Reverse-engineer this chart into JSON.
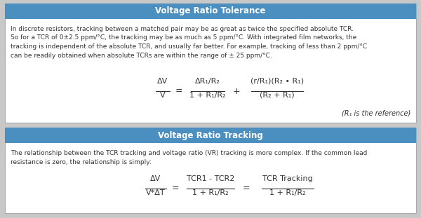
{
  "header1": "Voltage Ratio Tolerance",
  "header2": "Voltage Ratio Tracking",
  "header_bg": "#4a8fc0",
  "header_text_color": "#ffffff",
  "box_bg": "#ffffff",
  "box_border": "#aaaaaa",
  "outer_bg": "#c8c8c8",
  "text_color": "#333333",
  "text1_line1": "In discrete resistors, tracking between a matched pair may be as great as twice the specified absolute TCR.",
  "text1_line2": "So for a TCR of 0±2.5 ppm/°C, the tracking may be as much as 5 ppm/°C. With integrated film networks, the",
  "text1_line3": "tracking is independent of the absolute TCR, and usually far better. For example, tracking of less than 2 ppm/°C",
  "text1_line4": "can be readily obtained when absolute TCRs are within the range of ± 25 ppm/°C.",
  "text2_line1": "The relationship between the TCR tracking and voltage ratio (VR) tracking is more complex. If the common lead",
  "text2_line2": "resistance is zero, the relationship is simply:",
  "note": "(R₁ is the reference)",
  "fig_w": 6.0,
  "fig_h": 3.11,
  "dpi": 100
}
